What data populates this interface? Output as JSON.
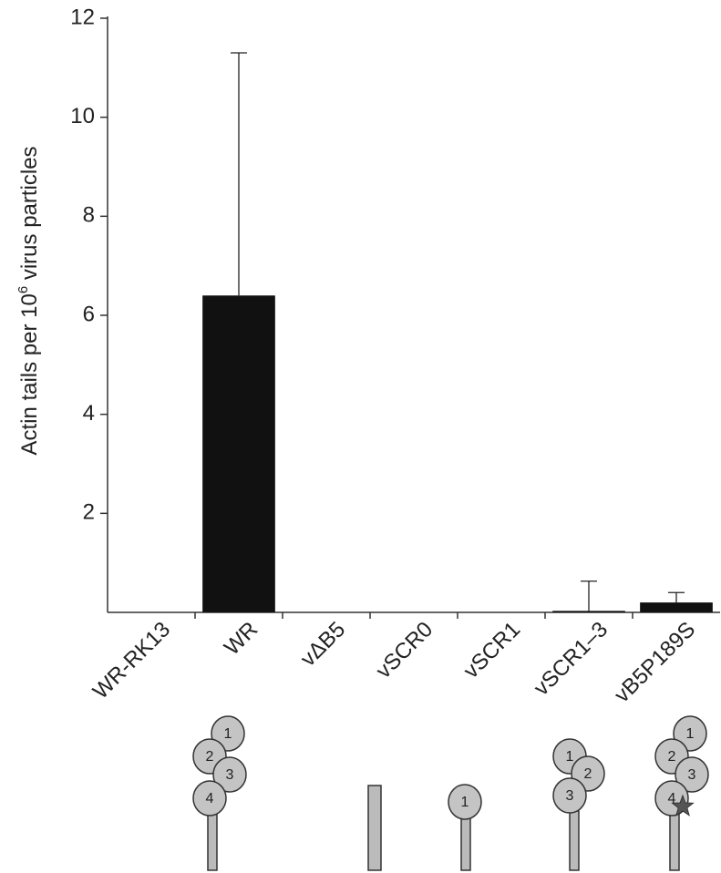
{
  "chart_data": {
    "type": "bar",
    "y_label": {
      "text": "Actin tails per 10",
      "sup": "6",
      "rest": " virus particles"
    },
    "categories": [
      "WR-RK13",
      "WR",
      "vΔB5",
      "vSCR0",
      "vSCR1",
      "vSCR1–3",
      "vB5P189S"
    ],
    "values": [
      0,
      6.4,
      0,
      0,
      0,
      0.03,
      0.2
    ],
    "errors": [
      null,
      4.9,
      null,
      null,
      null,
      0.6,
      0.2
    ],
    "color": "#111111",
    "ylim": [
      0,
      12
    ],
    "yticks": [
      2,
      4,
      6,
      8,
      10,
      12
    ]
  },
  "diagrams": [
    {
      "domains": [
        "1",
        "2",
        "3",
        "4"
      ]
    },
    {
      "domains": []
    },
    {
      "domains": [
        "1"
      ]
    },
    {
      "domains": [
        "1",
        "2",
        "3"
      ]
    },
    {
      "domains": [
        "1",
        "2",
        "3",
        "4"
      ]
    }
  ]
}
